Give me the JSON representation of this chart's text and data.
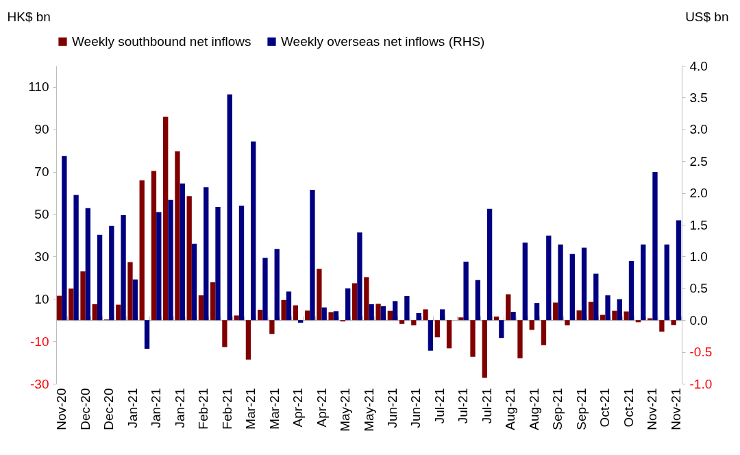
{
  "chart_data": {
    "type": "bar",
    "ylabel": "HK$ bn",
    "y2label": "US$ bn",
    "legend": "top",
    "categories": [
      "Nov-20",
      null,
      "Dec-20",
      null,
      "Dec-20",
      null,
      "Jan-21",
      null,
      "Jan-21",
      null,
      "Jan-21",
      null,
      "Feb-21",
      null,
      "Feb-21",
      null,
      "Mar-21",
      null,
      "Mar-21",
      null,
      "Apr-21",
      null,
      "Apr-21",
      null,
      "May-21",
      null,
      "May-21",
      null,
      "Jun-21",
      null,
      "Jun-21",
      null,
      "Jul-21",
      null,
      "Jul-21",
      null,
      "Jul-21",
      null,
      "Aug-21",
      null,
      "Aug-21",
      null,
      "Sep-21",
      null,
      "Sep-21",
      null,
      "Oct-21",
      null,
      "Oct-21",
      null,
      "Nov-21",
      null,
      "Nov-21"
    ],
    "series": [
      {
        "name": "Weekly southbound net inflows",
        "color": "#800000",
        "values": [
          11.5,
          14.9,
          23.0,
          7.5,
          0.3,
          7.3,
          27.4,
          65.9,
          70.4,
          95.9,
          79.7,
          58.5,
          11.7,
          17.9,
          -12.7,
          2.2,
          -18.6,
          4.9,
          -6.5,
          9.5,
          7.0,
          4.5,
          24.2,
          3.8,
          -0.6,
          17.4,
          20.3,
          7.7,
          4.4,
          -1.8,
          -2.4,
          5.1,
          -8.1,
          -13.3,
          1.3,
          -17.3,
          -27.2,
          1.7,
          12.2,
          -18.0,
          -4.6,
          -11.8,
          8.3,
          -2.4,
          4.6,
          8.6,
          2.5,
          4.4,
          4.1,
          -1.0,
          0.9,
          -5.4,
          -2.3
        ]
      },
      {
        "name": "Weekly overseas net inflows (RHS)",
        "color": "#000080",
        "axis": "y2",
        "values": [
          2.58,
          1.97,
          1.76,
          1.34,
          1.48,
          1.65,
          0.64,
          -0.45,
          1.7,
          1.89,
          2.15,
          1.2,
          2.09,
          1.78,
          3.55,
          1.8,
          2.81,
          0.98,
          1.12,
          0.45,
          -0.04,
          2.05,
          0.2,
          0.14,
          0.5,
          1.38,
          0.25,
          0.22,
          0.3,
          0.38,
          0.11,
          -0.48,
          0.17,
          0,
          0.92,
          0.63,
          1.75,
          -0.28,
          0.13,
          1.22,
          0.27,
          1.33,
          1.19,
          1.04,
          1.14,
          0.73,
          0.39,
          0.33,
          0.93,
          1.19,
          2.33,
          1.19,
          1.57
        ]
      }
    ],
    "ylim": [
      -30,
      120
    ],
    "yticks": [
      -30,
      -10,
      10,
      30,
      50,
      70,
      90,
      110
    ],
    "y2lim": [
      -1,
      4
    ],
    "y2ticks": [
      {
        "value": -1,
        "label": "-1.0"
      },
      {
        "value": -0.5,
        "label": "-0.5"
      },
      {
        "value": 0,
        "label": "0.0"
      },
      {
        "value": 0.5,
        "label": "0.5"
      },
      {
        "value": 1,
        "label": "1.0"
      },
      {
        "value": 1.5,
        "label": "1.5"
      },
      {
        "value": 2,
        "label": "2.0"
      },
      {
        "value": 2.5,
        "label": "2.5"
      },
      {
        "value": 3,
        "label": "3.0"
      },
      {
        "value": 3.5,
        "label": "3.5"
      },
      {
        "value": 4,
        "label": "4.0"
      }
    ]
  }
}
